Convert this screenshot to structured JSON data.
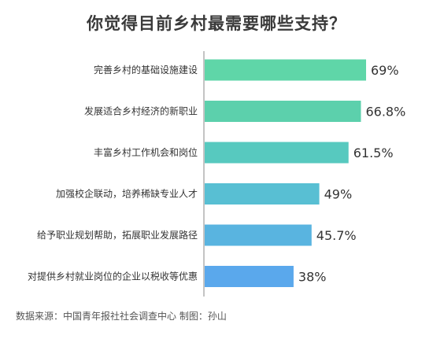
{
  "chart_data": {
    "type": "bar",
    "orientation": "horizontal",
    "title": "你觉得目前乡村最需要哪些支持？",
    "categories": [
      "完善乡村的基础设施建设",
      "发展适合乡村经济的新职业",
      "丰富乡村工作机会和岗位",
      "加强校企联动，培养稀缺专业人才",
      "给予职业规划帮助，拓展职业发展路径",
      "对提供乡村就业岗位的企业以税收等优惠"
    ],
    "values": [
      69,
      66.8,
      61.5,
      49,
      45.7,
      38
    ],
    "value_labels": [
      "69%",
      "66.8%",
      "61.5%",
      "49%",
      "45.7%",
      "38%"
    ],
    "unit": "%",
    "colors": [
      "#5fd6a8",
      "#5cd0ac",
      "#57c9bf",
      "#58bfd3",
      "#59b4e0",
      "#5aa8ec"
    ],
    "grid": false,
    "legend": "none"
  },
  "footer": {
    "source": "数据来源：中国青年报社社会调查中心  制图：孙山"
  }
}
